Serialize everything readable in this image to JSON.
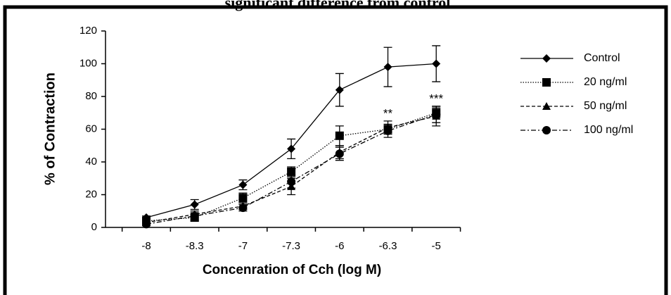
{
  "chart_data": {
    "type": "line",
    "title": "significant difference from control",
    "x_label": "Concenration of Cch (log M)",
    "y_label": "% of Contraction",
    "categories": [
      "-8",
      "-8.3",
      "-7",
      "-7.3",
      "-6",
      "-6.3",
      "-5"
    ],
    "ylim": [
      0,
      120
    ],
    "yticks": [
      0,
      20,
      40,
      60,
      80,
      100,
      120
    ],
    "grid": false,
    "legend": "right",
    "series": [
      {
        "name": "Control",
        "color": "#000000",
        "marker": "diamond",
        "line_style": "solid",
        "values": [
          6,
          14,
          26,
          48,
          84,
          98,
          100
        ],
        "errors": [
          1,
          3,
          3,
          6,
          10,
          12,
          11
        ]
      },
      {
        "name": "20 ng/ml",
        "color": "#000000",
        "marker": "square",
        "line_style": "dotted",
        "values": [
          4,
          6,
          18,
          34,
          56,
          60,
          70
        ],
        "errors": [
          1,
          2,
          3,
          3,
          6,
          3,
          3
        ]
      },
      {
        "name": "50 ng/ml",
        "color": "#000000",
        "marker": "triangle",
        "line_style": "dashed",
        "values": [
          3,
          8,
          13,
          25,
          46,
          61,
          68
        ],
        "errors": [
          1,
          2,
          2,
          5,
          4,
          4,
          6
        ]
      },
      {
        "name": "100 ng/ml",
        "color": "#000000",
        "marker": "circle",
        "line_style": "dashdot",
        "values": [
          2,
          7,
          12,
          28,
          45,
          59,
          69
        ],
        "errors": [
          1,
          2,
          2,
          4,
          4,
          4,
          5
        ]
      }
    ],
    "annotations": [
      {
        "text": "**",
        "category": "-6.3"
      },
      {
        "text": "***",
        "category": "-5"
      }
    ]
  }
}
